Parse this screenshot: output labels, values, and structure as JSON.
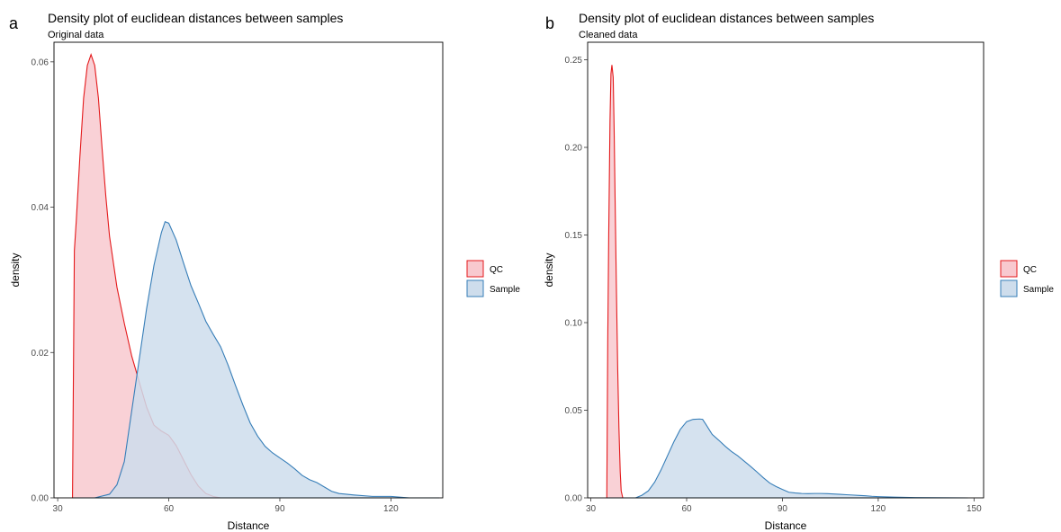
{
  "chart_data": [
    {
      "tag": "a",
      "type": "area",
      "title": "Density plot of euclidean distances between samples",
      "subtitle": "Original data",
      "xlabel": "Distance",
      "ylabel": "density",
      "xlim": [
        29,
        134
      ],
      "ylim": [
        0,
        0.0627
      ],
      "x_ticks": [
        30,
        60,
        90,
        120
      ],
      "y_ticks": [
        0.0,
        0.02,
        0.04,
        0.06
      ],
      "y_tick_labels": [
        "0.00",
        "0.02",
        "0.04",
        "0.06"
      ],
      "legend_position": "right",
      "series": [
        {
          "name": "QC",
          "line_color": "#E41A1C",
          "fill_color": "#F8C9CF",
          "x": [
            34,
            34.5,
            35,
            36,
            37,
            38,
            39,
            40,
            41,
            42,
            43,
            44,
            46,
            48,
            50,
            52,
            54,
            56,
            58,
            60,
            62,
            64,
            66,
            68,
            70,
            72,
            74,
            76,
            80,
            90,
            100,
            110,
            120,
            133
          ],
          "y": [
            0.0,
            0.034,
            0.038,
            0.047,
            0.055,
            0.0595,
            0.061,
            0.0595,
            0.055,
            0.048,
            0.0415,
            0.036,
            0.029,
            0.024,
            0.0195,
            0.016,
            0.0125,
            0.01,
            0.0092,
            0.0086,
            0.0072,
            0.0052,
            0.0032,
            0.0016,
            0.0006,
            0.0002,
            0.0,
            0.0,
            0.0,
            0.0,
            0.0,
            0.0,
            0.0,
            0.0
          ]
        },
        {
          "name": "Sample",
          "line_color": "#377EB8",
          "fill_color": "#CEDDEC",
          "x": [
            34,
            40,
            44,
            46,
            48,
            50,
            52,
            54,
            56,
            58,
            59,
            60,
            62,
            64,
            66,
            68,
            70,
            72,
            74,
            76,
            78,
            80,
            82,
            84,
            86,
            88,
            90,
            92,
            94,
            96,
            98,
            100,
            102,
            104,
            106,
            110,
            115,
            120,
            125,
            133
          ],
          "y": [
            0.0,
            0.0,
            0.0005,
            0.0018,
            0.005,
            0.012,
            0.019,
            0.026,
            0.032,
            0.0365,
            0.038,
            0.0378,
            0.0355,
            0.0323,
            0.0292,
            0.0268,
            0.0243,
            0.0225,
            0.0208,
            0.0183,
            0.0155,
            0.0128,
            0.0103,
            0.0085,
            0.0071,
            0.0062,
            0.0055,
            0.0048,
            0.004,
            0.0031,
            0.0025,
            0.0021,
            0.0015,
            0.0009,
            0.0006,
            0.0004,
            0.0002,
            0.0002,
            0.0,
            0.0
          ]
        }
      ]
    },
    {
      "tag": "b",
      "type": "area",
      "title": "Density plot of euclidean distances between samples",
      "subtitle": "Cleaned data",
      "xlabel": "Distance",
      "ylabel": "density",
      "xlim": [
        29,
        153
      ],
      "ylim": [
        0,
        0.26
      ],
      "x_ticks": [
        30,
        60,
        90,
        120,
        150
      ],
      "y_ticks": [
        0.0,
        0.05,
        0.1,
        0.15,
        0.2,
        0.25
      ],
      "y_tick_labels": [
        "0.00",
        "0.05",
        "0.10",
        "0.15",
        "0.20",
        "0.25"
      ],
      "legend_position": "right",
      "series": [
        {
          "name": "QC",
          "line_color": "#E41A1C",
          "fill_color": "#F8C9CF",
          "x": [
            35,
            35.3,
            35.6,
            36,
            36.3,
            36.6,
            37,
            37.3,
            37.6,
            38,
            38.4,
            38.8,
            39.2,
            39.5,
            40,
            41,
            50,
            60,
            90,
            120,
            148
          ],
          "y": [
            0.0,
            0.09,
            0.15,
            0.215,
            0.242,
            0.247,
            0.24,
            0.21,
            0.17,
            0.12,
            0.075,
            0.04,
            0.015,
            0.004,
            0.0,
            0.0,
            0.0,
            0.0,
            0.0,
            0.0,
            0.0
          ]
        },
        {
          "name": "Sample",
          "line_color": "#377EB8",
          "fill_color": "#CEDDEC",
          "x": [
            35,
            44,
            46,
            48,
            50,
            52,
            54,
            56,
            58,
            60,
            62,
            64,
            65,
            66,
            68,
            70,
            72,
            74,
            76,
            78,
            80,
            82,
            84,
            86,
            88,
            90,
            92,
            94,
            96,
            98,
            100,
            102,
            104,
            106,
            108,
            110,
            112,
            114,
            116,
            118,
            120,
            125,
            130,
            148
          ],
          "y": [
            0.0,
            0.0,
            0.0015,
            0.004,
            0.009,
            0.016,
            0.024,
            0.032,
            0.039,
            0.0435,
            0.0448,
            0.045,
            0.0448,
            0.042,
            0.0362,
            0.033,
            0.0296,
            0.0265,
            0.024,
            0.021,
            0.018,
            0.0148,
            0.0115,
            0.0085,
            0.0065,
            0.0048,
            0.0032,
            0.0028,
            0.0025,
            0.0024,
            0.0025,
            0.0025,
            0.0024,
            0.0022,
            0.002,
            0.0018,
            0.0016,
            0.0014,
            0.0012,
            0.0009,
            0.0007,
            0.0004,
            0.0002,
            0.0
          ]
        }
      ]
    }
  ]
}
